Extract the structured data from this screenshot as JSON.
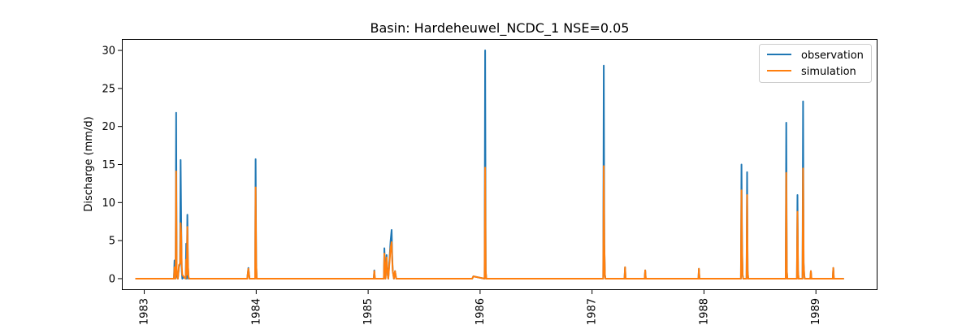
{
  "chart_data": {
    "type": "line",
    "title": "Basin: Hardeheuwel_NCDC_1 NSE=0.05",
    "xlabel": "",
    "ylabel": "Discharge (mm/d)",
    "xlim": [
      1982.8,
      1989.55
    ],
    "ylim": [
      -1.5,
      31.5
    ],
    "x_ticks": [
      1983,
      1984,
      1985,
      1986,
      1987,
      1988,
      1989
    ],
    "y_ticks": [
      0,
      5,
      10,
      15,
      20,
      25,
      30
    ],
    "grid": false,
    "legend_position": "top-right",
    "colors": {
      "observation": "#1f77b4",
      "simulation": "#ff7f0e"
    },
    "series": [
      {
        "name": "observation",
        "x": [
          1982.92,
          1983.265,
          1983.27,
          1983.275,
          1983.28,
          1983.285,
          1983.29,
          1983.3,
          1983.31,
          1983.32,
          1983.325,
          1983.33,
          1983.335,
          1983.34,
          1983.35,
          1983.37,
          1983.375,
          1983.38,
          1983.385,
          1983.39,
          1983.395,
          1983.4,
          1983.41,
          1983.92,
          1983.93,
          1983.94,
          1983.99,
          1983.995,
          1984.0,
          1984.005,
          1984.01,
          1985.05,
          1985.055,
          1985.06,
          1985.14,
          1985.145,
          1985.15,
          1985.155,
          1985.165,
          1985.17,
          1985.175,
          1985.18,
          1985.2,
          1985.21,
          1985.215,
          1985.22,
          1985.225,
          1985.23,
          1985.24,
          1985.25,
          1985.93,
          1985.94,
          1986.04,
          1986.045,
          1986.05,
          1986.055,
          1986.06,
          1987.1,
          1987.105,
          1987.11,
          1987.115,
          1987.12,
          1987.13,
          1987.29,
          1987.295,
          1987.3,
          1987.47,
          1987.475,
          1987.48,
          1987.95,
          1987.955,
          1987.96,
          1988.33,
          1988.335,
          1988.34,
          1988.345,
          1988.35,
          1988.38,
          1988.385,
          1988.39,
          1988.395,
          1988.73,
          1988.735,
          1988.74,
          1988.745,
          1988.83,
          1988.835,
          1988.84,
          1988.845,
          1988.88,
          1988.885,
          1988.89,
          1988.895,
          1988.9,
          1988.95,
          1988.955,
          1988.96,
          1989.15,
          1989.155,
          1989.16,
          1989.25
        ],
        "y": [
          0.0,
          0.0,
          2.4,
          0.2,
          0.0,
          21.8,
          0.4,
          0.0,
          1.5,
          2.0,
          15.6,
          7.5,
          1.0,
          0.0,
          0.2,
          0.0,
          4.6,
          0.0,
          8.4,
          2.0,
          0.0,
          0.0,
          0.0,
          0.0,
          1.4,
          0.0,
          0.0,
          15.7,
          2.0,
          0.0,
          0.0,
          0.0,
          1.1,
          0.0,
          0.0,
          4.0,
          1.0,
          0.0,
          3.1,
          1.5,
          0.5,
          0.0,
          4.9,
          6.4,
          3.0,
          1.0,
          0.5,
          0.0,
          1.0,
          0.0,
          0.0,
          0.3,
          0.0,
          30.0,
          1.0,
          0.0,
          0.0,
          0.0,
          28.0,
          4.5,
          0.5,
          0.0,
          0.0,
          0.0,
          1.5,
          0.0,
          0.0,
          1.1,
          0.0,
          0.0,
          1.3,
          0.0,
          0.0,
          15.0,
          4.6,
          0.5,
          0.0,
          0.0,
          14.0,
          1.0,
          0.0,
          0.0,
          20.5,
          1.0,
          0.0,
          0.0,
          11.0,
          1.0,
          0.0,
          0.0,
          23.3,
          2.0,
          0.5,
          0.0,
          0.0,
          1.0,
          0.0,
          0.0,
          1.4,
          0.0,
          0.0
        ]
      },
      {
        "name": "simulation",
        "x": [
          1982.92,
          1983.265,
          1983.27,
          1983.275,
          1983.28,
          1983.285,
          1983.29,
          1983.3,
          1983.31,
          1983.32,
          1983.325,
          1983.33,
          1983.335,
          1983.34,
          1983.35,
          1983.37,
          1983.375,
          1983.38,
          1983.385,
          1983.39,
          1983.395,
          1983.4,
          1983.41,
          1983.92,
          1983.93,
          1983.94,
          1983.99,
          1983.995,
          1984.0,
          1984.005,
          1984.01,
          1985.05,
          1985.055,
          1985.06,
          1985.14,
          1985.145,
          1985.15,
          1985.155,
          1985.165,
          1985.17,
          1985.175,
          1985.18,
          1985.2,
          1985.21,
          1985.215,
          1985.22,
          1985.225,
          1985.23,
          1985.24,
          1985.25,
          1985.93,
          1985.94,
          1986.04,
          1986.045,
          1986.05,
          1986.055,
          1986.06,
          1987.1,
          1987.105,
          1987.11,
          1987.115,
          1987.12,
          1987.13,
          1987.29,
          1987.295,
          1987.3,
          1987.47,
          1987.475,
          1987.48,
          1987.95,
          1987.955,
          1987.96,
          1988.33,
          1988.335,
          1988.34,
          1988.345,
          1988.35,
          1988.38,
          1988.385,
          1988.39,
          1988.395,
          1988.73,
          1988.735,
          1988.74,
          1988.745,
          1988.83,
          1988.835,
          1988.84,
          1988.845,
          1988.88,
          1988.885,
          1988.89,
          1988.895,
          1988.9,
          1988.95,
          1988.955,
          1988.96,
          1989.15,
          1989.155,
          1989.16,
          1989.25
        ],
        "y": [
          0.0,
          0.0,
          1.5,
          0.3,
          0.0,
          14.1,
          1.0,
          0.0,
          1.8,
          2.0,
          7.3,
          6.0,
          1.5,
          0.5,
          0.3,
          0.0,
          2.5,
          0.5,
          6.8,
          2.0,
          0.3,
          0.0,
          0.0,
          0.0,
          1.3,
          0.0,
          0.0,
          12.0,
          2.0,
          0.0,
          0.0,
          0.0,
          1.0,
          0.0,
          0.0,
          3.3,
          1.0,
          0.0,
          2.8,
          1.5,
          0.5,
          0.0,
          4.0,
          4.8,
          2.5,
          1.0,
          0.5,
          0.0,
          1.0,
          0.0,
          0.0,
          0.3,
          0.0,
          14.6,
          1.0,
          0.0,
          0.0,
          0.0,
          14.8,
          4.2,
          0.5,
          0.0,
          0.0,
          0.0,
          1.5,
          0.0,
          0.0,
          1.1,
          0.0,
          0.0,
          1.3,
          0.0,
          0.0,
          11.6,
          4.0,
          0.5,
          0.0,
          0.0,
          11.0,
          1.0,
          0.0,
          0.0,
          13.9,
          1.0,
          0.0,
          0.0,
          8.8,
          1.0,
          0.0,
          0.0,
          14.5,
          2.0,
          0.5,
          0.0,
          0.0,
          1.0,
          0.0,
          0.0,
          1.4,
          0.0,
          0.0
        ]
      }
    ]
  }
}
